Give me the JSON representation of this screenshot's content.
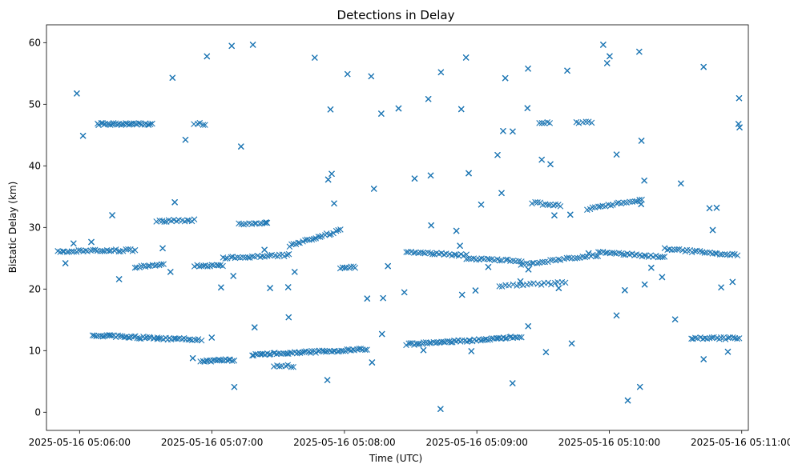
{
  "chart_data": {
    "type": "scatter",
    "title": "Detections in Delay",
    "xlabel": "Time (UTC)",
    "ylabel": "Bistatic Delay (km)",
    "x_is_time": true,
    "xlim": [
      "2025-05-16 05:05:45",
      "2025-05-16 05:11:03"
    ],
    "ylim": [
      -2.95,
      62.9
    ],
    "x_ticks": [
      "2025-05-16 05:06:00",
      "2025-05-16 05:07:00",
      "2025-05-16 05:08:00",
      "2025-05-16 05:09:00",
      "2025-05-16 05:10:00",
      "2025-05-16 05:11:00"
    ],
    "y_ticks": [
      0,
      10,
      20,
      30,
      40,
      50,
      60
    ],
    "grid": false,
    "marker": "x",
    "color": "#1f77b4",
    "series": [
      {
        "time_range": [
          "2025-05-16 05:05:48",
          "2025-05-16 05:10:59"
        ],
        "clusters": [
          {
            "x0": "2025-05-16 05:06:08",
            "x1": "2025-05-16 05:06:33",
            "y0": 46.8,
            "y1": 46.8,
            "n": 34
          },
          {
            "x0": "2025-05-16 05:06:06",
            "x1": "2025-05-16 05:06:35",
            "y0": 12.5,
            "y1": 12.0,
            "n": 34
          },
          {
            "x0": "2025-05-16 05:06:35",
            "x1": "2025-05-16 05:06:55",
            "y0": 12.0,
            "y1": 11.8,
            "n": 22
          },
          {
            "x0": "2025-05-16 05:06:55",
            "x1": "2025-05-16 05:07:10",
            "y0": 8.3,
            "y1": 8.5,
            "n": 20
          },
          {
            "x0": "2025-05-16 05:07:18",
            "x1": "2025-05-16 05:08:10",
            "y0": 9.3,
            "y1": 10.2,
            "n": 60
          },
          {
            "x0": "2025-05-16 05:07:28",
            "x1": "2025-05-16 05:07:37",
            "y0": 7.5,
            "y1": 7.5,
            "n": 8
          },
          {
            "x0": "2025-05-16 05:08:28",
            "x1": "2025-05-16 05:09:20",
            "y0": 11.0,
            "y1": 12.2,
            "n": 60
          },
          {
            "x0": "2025-05-16 05:10:37",
            "x1": "2025-05-16 05:10:59",
            "y0": 12.0,
            "y1": 12.0,
            "n": 22
          },
          {
            "x0": "2025-05-16 05:05:50",
            "x1": "2025-05-16 05:06:25",
            "y0": 26.1,
            "y1": 26.3,
            "n": 34
          },
          {
            "x0": "2025-05-16 05:06:25",
            "x1": "2025-05-16 05:06:38",
            "y0": 23.5,
            "y1": 24.0,
            "n": 14
          },
          {
            "x0": "2025-05-16 05:06:35",
            "x1": "2025-05-16 05:06:52",
            "y0": 31.0,
            "y1": 31.2,
            "n": 16
          },
          {
            "x0": "2025-05-16 05:06:52",
            "x1": "2025-05-16 05:07:05",
            "y0": 23.8,
            "y1": 23.8,
            "n": 14
          },
          {
            "x0": "2025-05-16 05:07:05",
            "x1": "2025-05-16 05:07:35",
            "y0": 25.0,
            "y1": 25.5,
            "n": 28
          },
          {
            "x0": "2025-05-16 05:07:12",
            "x1": "2025-05-16 05:07:25",
            "y0": 30.5,
            "y1": 30.8,
            "n": 12
          },
          {
            "x0": "2025-05-16 05:07:35",
            "x1": "2025-05-16 05:07:58",
            "y0": 27.0,
            "y1": 29.5,
            "n": 24
          },
          {
            "x0": "2025-05-16 05:07:58",
            "x1": "2025-05-16 05:08:05",
            "y0": 23.5,
            "y1": 23.5,
            "n": 8
          },
          {
            "x0": "2025-05-16 05:08:28",
            "x1": "2025-05-16 05:08:55",
            "y0": 26.0,
            "y1": 25.5,
            "n": 26
          },
          {
            "x0": "2025-05-16 05:08:55",
            "x1": "2025-05-16 05:09:20",
            "y0": 25.0,
            "y1": 24.5,
            "n": 22
          },
          {
            "x0": "2025-05-16 05:09:10",
            "x1": "2025-05-16 05:09:40",
            "y0": 20.5,
            "y1": 21.0,
            "n": 20
          },
          {
            "x0": "2025-05-16 05:09:20",
            "x1": "2025-05-16 05:09:55",
            "y0": 24.0,
            "y1": 25.5,
            "n": 30
          },
          {
            "x0": "2025-05-16 05:09:25",
            "x1": "2025-05-16 05:09:38",
            "y0": 34.0,
            "y1": 33.5,
            "n": 12
          },
          {
            "x0": "2025-05-16 05:09:55",
            "x1": "2025-05-16 05:10:25",
            "y0": 26.0,
            "y1": 25.2,
            "n": 30
          },
          {
            "x0": "2025-05-16 05:09:50",
            "x1": "2025-05-16 05:10:15",
            "y0": 33.0,
            "y1": 34.5,
            "n": 22
          },
          {
            "x0": "2025-05-16 05:10:25",
            "x1": "2025-05-16 05:10:58",
            "y0": 26.5,
            "y1": 25.5,
            "n": 30
          },
          {
            "x0": "2025-05-16 05:09:45",
            "x1": "2025-05-16 05:09:52",
            "y0": 47.0,
            "y1": 47.0,
            "n": 6
          },
          {
            "x0": "2025-05-16 05:09:28",
            "x1": "2025-05-16 05:09:33",
            "y0": 47.0,
            "y1": 47.0,
            "n": 5
          },
          {
            "x0": "2025-05-16 05:06:52",
            "x1": "2025-05-16 05:06:57",
            "y0": 46.8,
            "y1": 46.8,
            "n": 5
          },
          {
            "x0": "2025-05-16 05:05:48",
            "x1": "2025-05-16 05:11:00",
            "y0": 0.5,
            "y1": 60.0,
            "n": 620,
            "random": true
          }
        ]
      }
    ]
  }
}
